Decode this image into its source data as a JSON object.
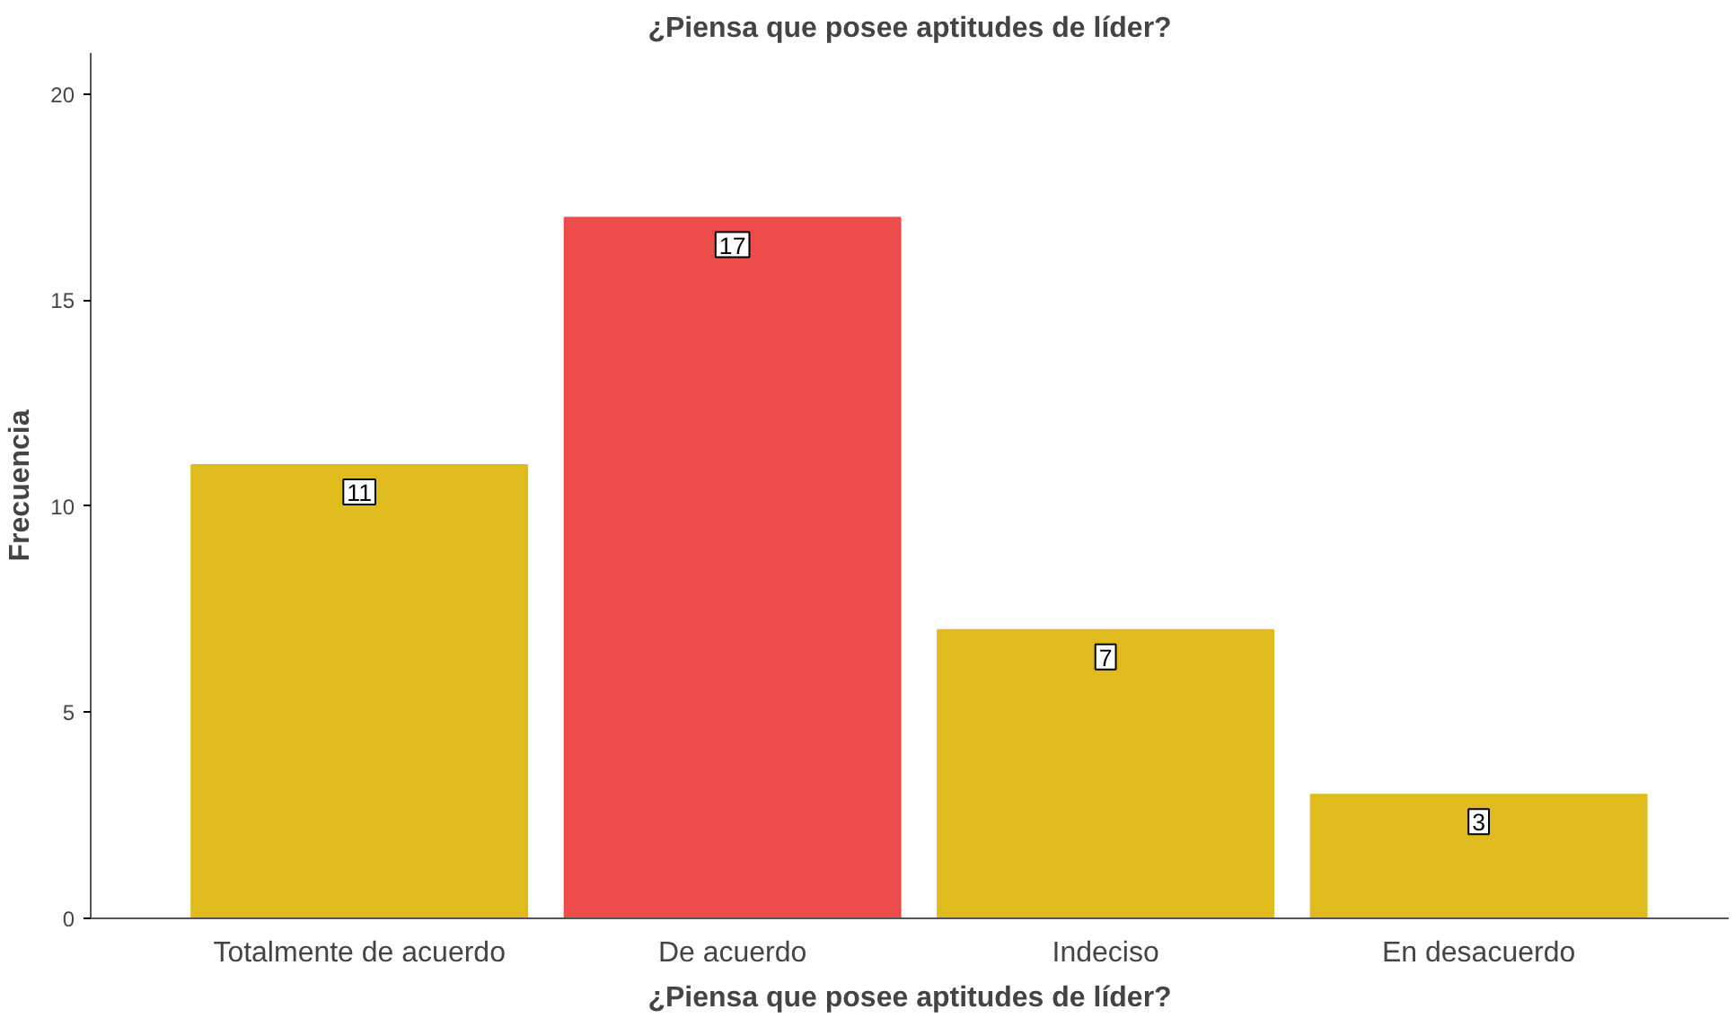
{
  "chart_data": {
    "type": "bar",
    "title": "¿Piensa que posee aptitudes de líder?",
    "xlabel": "¿Piensa que posee aptitudes de líder?",
    "ylabel": "Frecuencia",
    "categories": [
      "Totalmente de acuerdo",
      "De acuerdo",
      "Indeciso",
      "En desacuerdo"
    ],
    "values": [
      11,
      17,
      7,
      3
    ],
    "colors": [
      "#e0bb1e",
      "#ee4b4b",
      "#e0bb1e",
      "#e0bb1e"
    ],
    "ylim": [
      0,
      21
    ],
    "yticks": [
      0,
      5,
      10,
      15,
      20
    ],
    "grid": false,
    "data_labels": true
  }
}
